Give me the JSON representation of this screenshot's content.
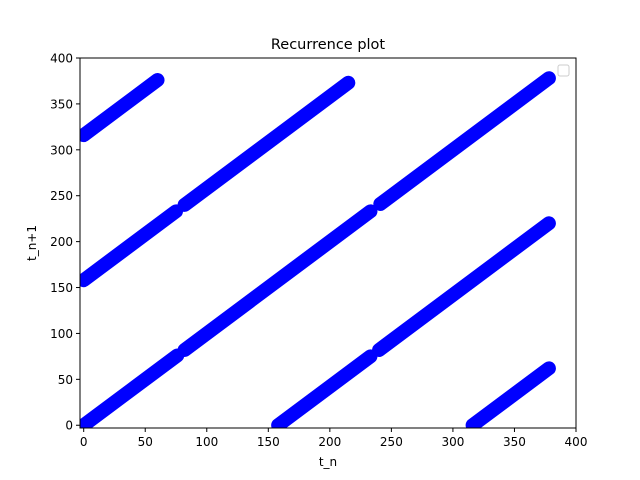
{
  "chart_data": {
    "type": "scatter",
    "title": "Recurrence plot",
    "xlabel": "t_n",
    "ylabel": "t_n+1",
    "xlim": [
      -3,
      400
    ],
    "ylim": [
      -3,
      400
    ],
    "xticks": [
      0,
      50,
      100,
      150,
      200,
      250,
      300,
      350,
      400
    ],
    "yticks": [
      0,
      50,
      100,
      150,
      200,
      250,
      300,
      350,
      400
    ],
    "grid": false,
    "legend": "upper-right (empty)",
    "series_color": "#0000ff",
    "series_edge_color": "#0000cc",
    "band_thickness": 14,
    "bands": [
      {
        "x": [
          0,
          60
        ],
        "y": [
          316,
          376
        ]
      },
      {
        "x": [
          0,
          75
        ],
        "y": [
          158,
          233
        ]
      },
      {
        "x": [
          82,
          215
        ],
        "y": [
          240,
          373
        ]
      },
      {
        "x": [
          0,
          76
        ],
        "y": [
          0,
          76
        ]
      },
      {
        "x": [
          82,
          233
        ],
        "y": [
          82,
          233
        ]
      },
      {
        "x": [
          241,
          378
        ],
        "y": [
          241,
          378
        ]
      },
      {
        "x": [
          158,
          233
        ],
        "y": [
          0,
          75
        ]
      },
      {
        "x": [
          240,
          378
        ],
        "y": [
          82,
          220
        ]
      },
      {
        "x": [
          316,
          378
        ],
        "y": [
          0,
          62
        ]
      }
    ]
  }
}
